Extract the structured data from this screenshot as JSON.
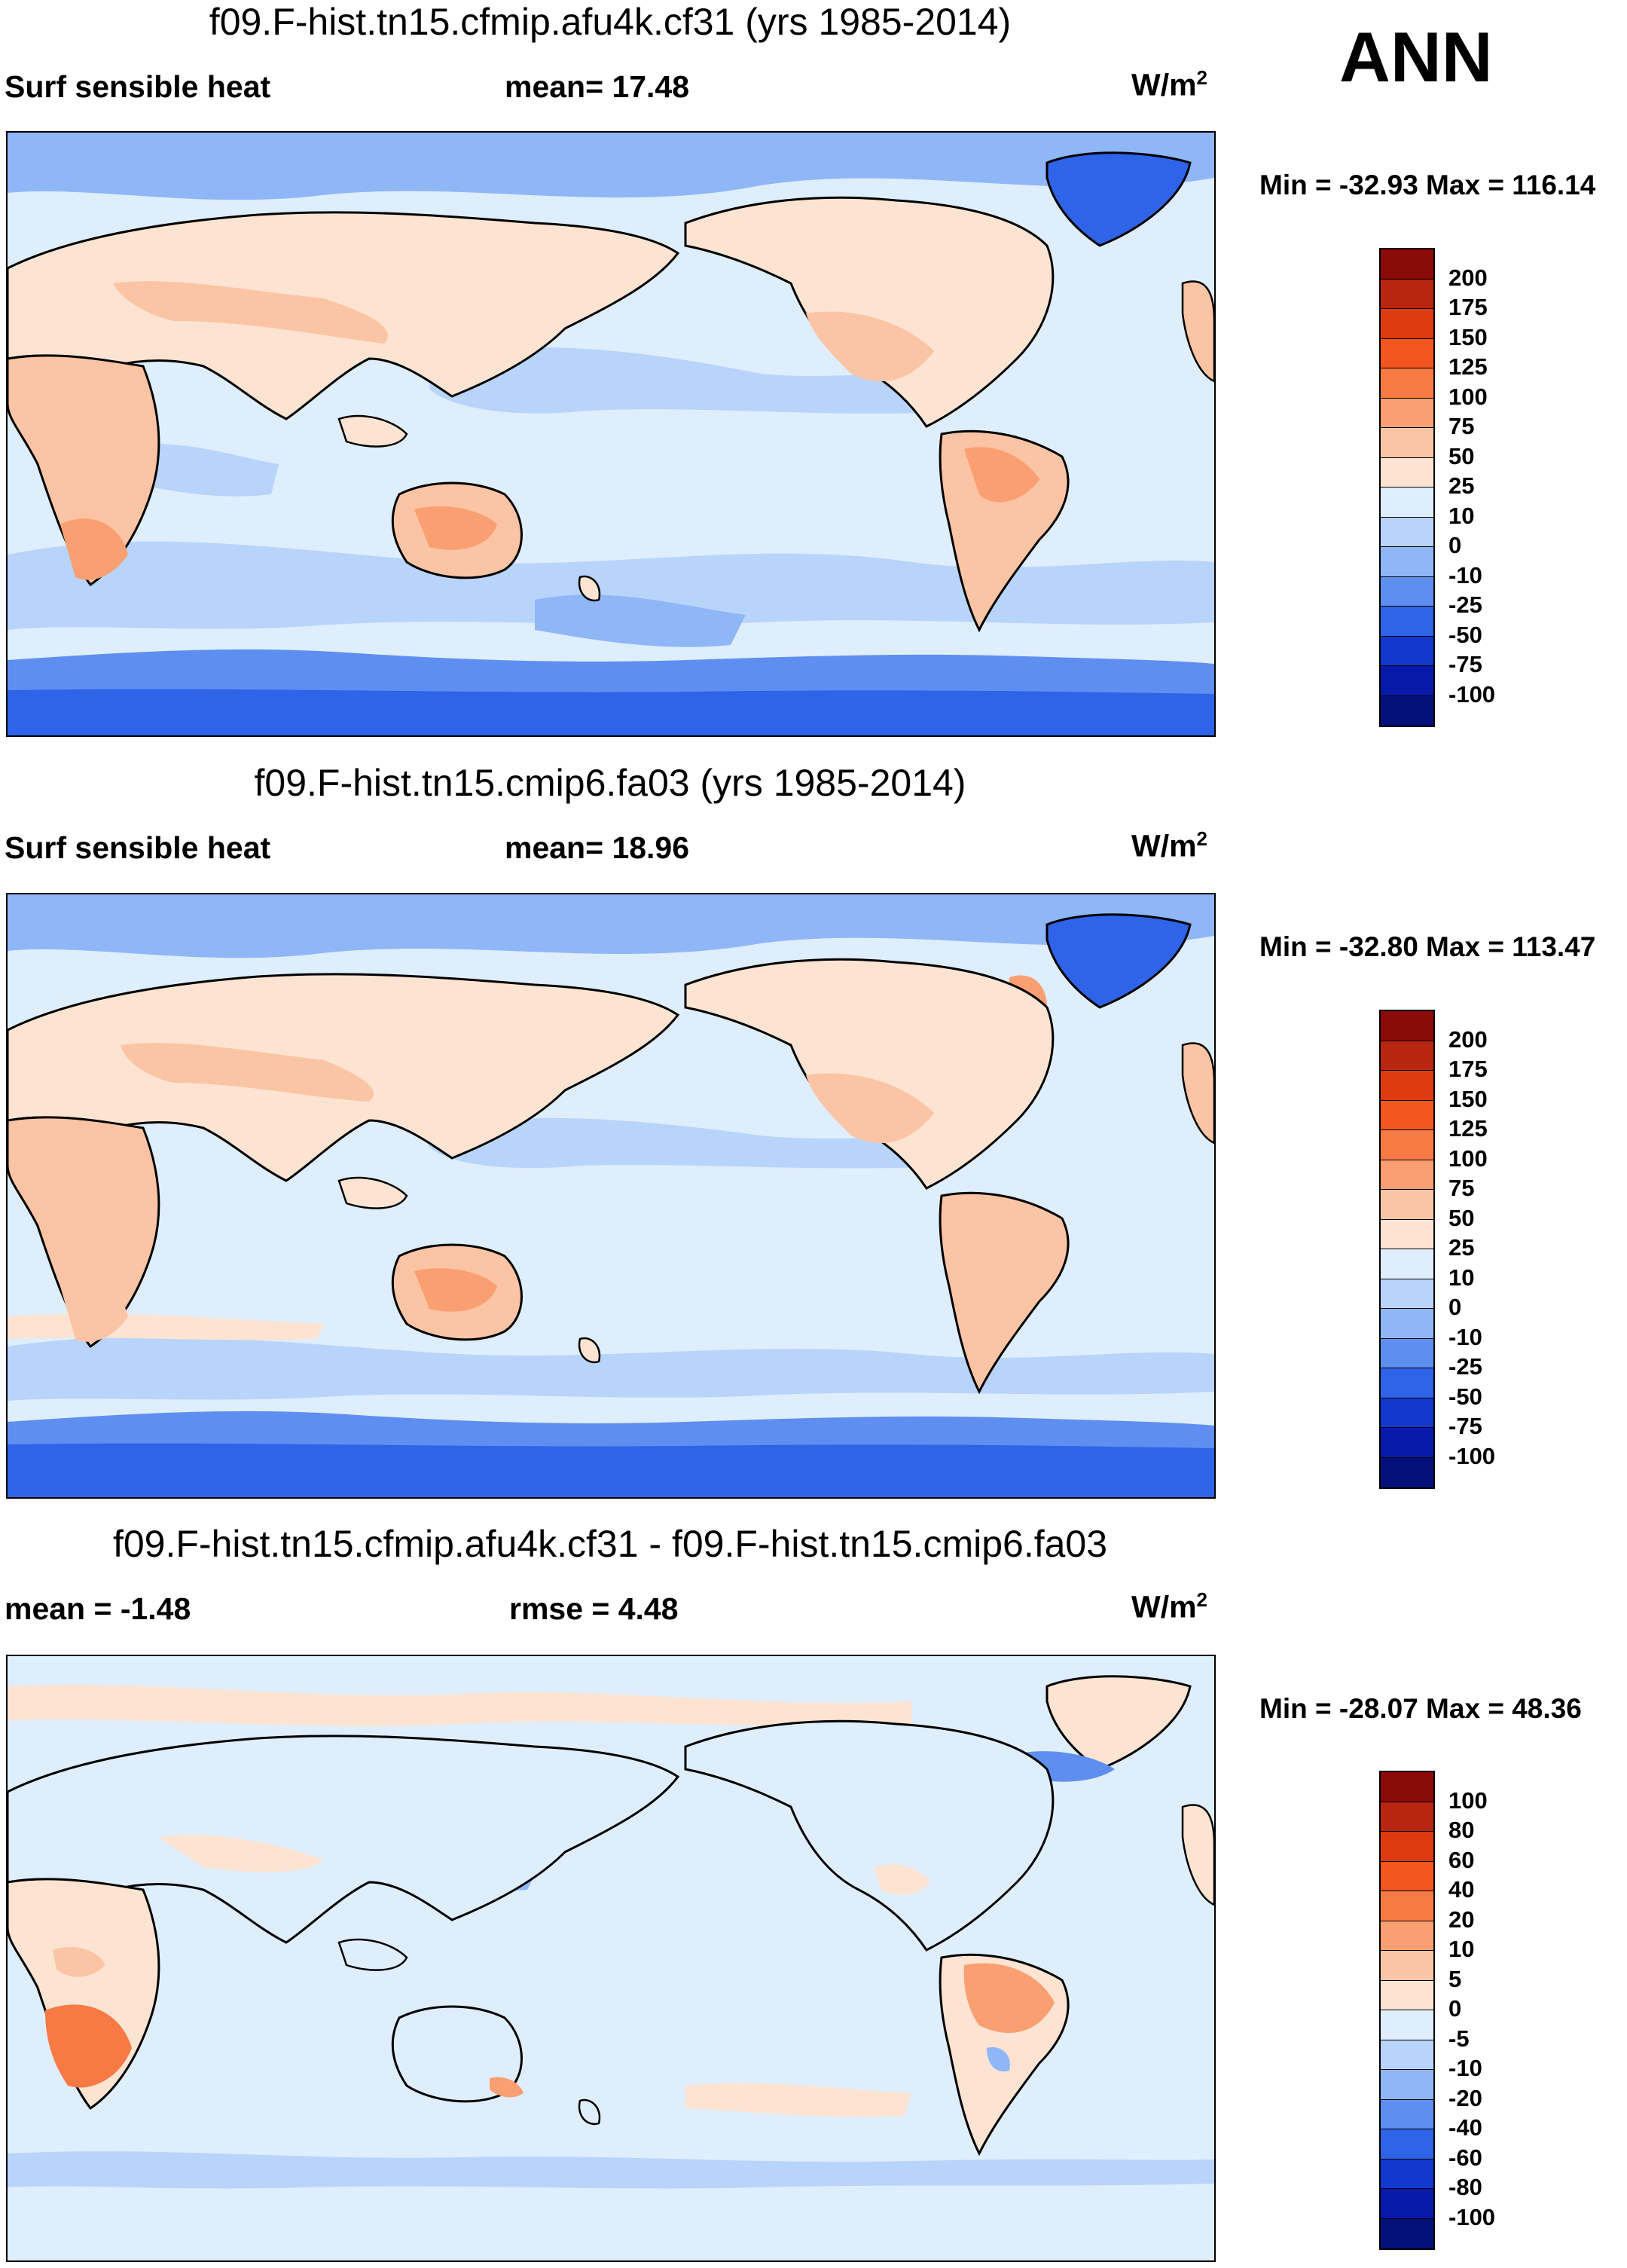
{
  "season": "ANN",
  "panels": [
    {
      "title": "f09.F-hist.tn15.cfmip.afu4k.cf31 (yrs 1985-2014)",
      "left_label": "Surf sensible heat",
      "center_label": "mean=  17.48",
      "units": "W/m",
      "units_sup": "2",
      "minmax": "Min = -32.93 Max = 116.14",
      "map_kind": "abs"
    },
    {
      "title": "f09.F-hist.tn15.cmip6.fa03 (yrs 1985-2014)",
      "left_label": "Surf sensible heat",
      "center_label": "mean=  18.96",
      "units": "W/m",
      "units_sup": "2",
      "minmax": "Min = -32.80 Max = 113.47",
      "map_kind": "abs"
    },
    {
      "title": "f09.F-hist.tn15.cfmip.afu4k.cf31 - f09.F-hist.tn15.cmip6.fa03",
      "left_label": "mean =  -1.48",
      "center_label": "rmse =   4.48",
      "units": "W/m",
      "units_sup": "2",
      "minmax": "Min = -28.07 Max =  48.36",
      "map_kind": "diff"
    }
  ],
  "colorbars": {
    "abs": {
      "labels": [
        "200",
        "175",
        "150",
        "125",
        "100",
        "75",
        "50",
        "25",
        "10",
        "0",
        "-10",
        "-25",
        "-50",
        "-75",
        "-100"
      ],
      "colors": [
        "#8b0a0a",
        "#b82510",
        "#dd3a12",
        "#f2561e",
        "#f77a45",
        "#f99f72",
        "#fbc4a4",
        "#fde4d2",
        "#dfeefc",
        "#b9d4fb",
        "#8fb7f7",
        "#5e8ff0",
        "#2f63e8",
        "#1338cf",
        "#0719a8",
        "#04107a"
      ]
    },
    "diff": {
      "labels": [
        "100",
        "80",
        "60",
        "40",
        "20",
        "10",
        "5",
        "0",
        "-5",
        "-10",
        "-20",
        "-40",
        "-60",
        "-80",
        "-100"
      ],
      "colors": [
        "#8b0a0a",
        "#b82510",
        "#dd3a12",
        "#f2561e",
        "#f77a45",
        "#f99f72",
        "#fbc4a4",
        "#fde4d2",
        "#dfeefc",
        "#b9d4fb",
        "#8fb7f7",
        "#5e8ff0",
        "#2f63e8",
        "#1338cf",
        "#0719a8",
        "#04107a"
      ]
    }
  }
}
